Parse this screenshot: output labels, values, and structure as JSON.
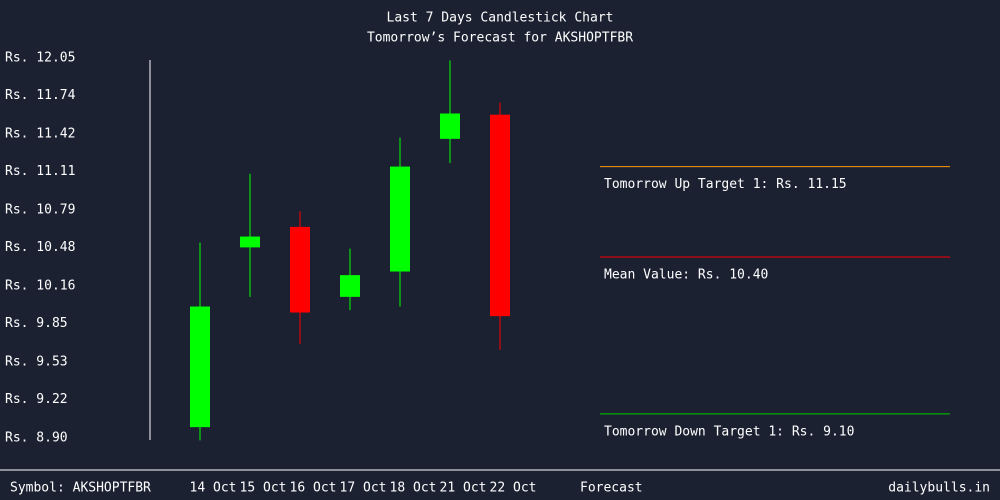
{
  "chart_data": {
    "type": "candlestick",
    "title": "Last 7 Days Candlestick Chart",
    "subtitle": "Tomorrow’s Forecast for AKSHOPTFBR",
    "categories": [
      "14 Oct",
      "15 Oct",
      "16 Oct",
      "17 Oct",
      "18 Oct",
      "21 Oct",
      "22 Oct"
    ],
    "open": [
      8.99,
      10.48,
      10.65,
      10.07,
      10.28,
      11.38,
      11.58
    ],
    "high": [
      10.52,
      11.09,
      10.78,
      10.47,
      11.39,
      12.03,
      11.68
    ],
    "low": [
      8.88,
      10.07,
      9.68,
      9.96,
      9.99,
      11.18,
      9.63
    ],
    "close": [
      9.99,
      10.57,
      9.94,
      10.25,
      11.15,
      11.59,
      9.91
    ],
    "up_color": "#00ff00",
    "down_color": "#ff0000",
    "ylim": [
      8.9,
      12.05
    ],
    "yticks": [
      {
        "value": 12.05,
        "label": "Rs. 12.05"
      },
      {
        "value": 11.74,
        "label": "Rs. 11.74"
      },
      {
        "value": 11.42,
        "label": "Rs. 11.42"
      },
      {
        "value": 11.11,
        "label": "Rs. 11.11"
      },
      {
        "value": 10.79,
        "label": "Rs. 10.79"
      },
      {
        "value": 10.48,
        "label": "Rs. 10.48"
      },
      {
        "value": 10.16,
        "label": "Rs. 10.16"
      },
      {
        "value": 9.85,
        "label": "Rs. 9.85"
      },
      {
        "value": 9.53,
        "label": "Rs. 9.53"
      },
      {
        "value": 9.22,
        "label": "Rs. 9.22"
      },
      {
        "value": 8.9,
        "label": "Rs. 8.90"
      }
    ],
    "forecast": [
      {
        "label": "Tomorrow Up Target 1: Rs. 11.15",
        "value": 11.15,
        "color": "#ff9900"
      },
      {
        "label": "Mean Value: Rs. 10.40",
        "value": 10.4,
        "color": "#ff0000"
      },
      {
        "label": "Tomorrow Down Target 1: Rs. 9.10",
        "value": 9.1,
        "color": "#00cc00"
      }
    ],
    "symbol_label": "Symbol: AKSHOPTFBR",
    "forecast_label": "Forecast",
    "source": "dailybulls.in"
  }
}
